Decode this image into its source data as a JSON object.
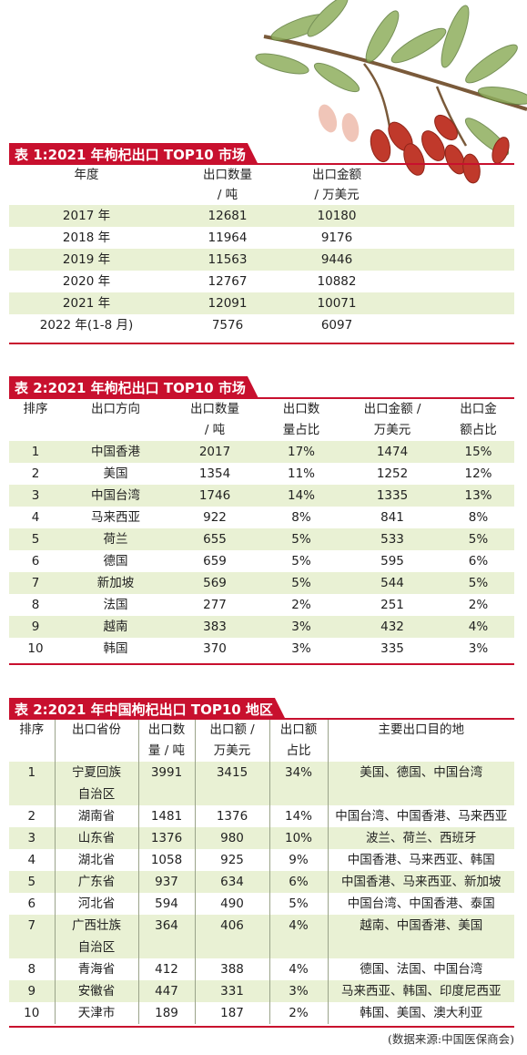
{
  "table1": {
    "title": "表 1:2021 年枸杞出口 TOP10 市场",
    "headers": [
      "年度",
      "出口数量\n/ 吨",
      "出口金额\n/ 万美元"
    ],
    "rows": [
      [
        "2017 年",
        "12681",
        "10180"
      ],
      [
        "2018 年",
        "11964",
        "9176"
      ],
      [
        "2019 年",
        "11563",
        "9446"
      ],
      [
        "2020 年",
        "12767",
        "10882"
      ],
      [
        "2021 年",
        "12091",
        "10071"
      ],
      [
        "2022 年(1-8 月)",
        "7576",
        "6097"
      ]
    ]
  },
  "table2": {
    "title": "表 2:2021 年枸杞出口 TOP10 市场",
    "headers": [
      "排序",
      "出口方向",
      "出口数量\n/ 吨",
      "出口数\n量占比",
      "出口金额 /\n万美元",
      "出口金\n额占比"
    ],
    "rows": [
      [
        "1",
        "中国香港",
        "2017",
        "17%",
        "1474",
        "15%"
      ],
      [
        "2",
        "美国",
        "1354",
        "11%",
        "1252",
        "12%"
      ],
      [
        "3",
        "中国台湾",
        "1746",
        "14%",
        "1335",
        "13%"
      ],
      [
        "4",
        "马来西亚",
        "922",
        "8%",
        "841",
        "8%"
      ],
      [
        "5",
        "荷兰",
        "655",
        "5%",
        "533",
        "5%"
      ],
      [
        "6",
        "德国",
        "659",
        "5%",
        "595",
        "6%"
      ],
      [
        "7",
        "新加坡",
        "569",
        "5%",
        "544",
        "5%"
      ],
      [
        "8",
        "法国",
        "277",
        "2%",
        "251",
        "2%"
      ],
      [
        "9",
        "越南",
        "383",
        "3%",
        "432",
        "4%"
      ],
      [
        "10",
        "韩国",
        "370",
        "3%",
        "335",
        "3%"
      ]
    ]
  },
  "table3": {
    "title": "表 2:2021 年中国枸杞出口 TOP10 地区",
    "headers": [
      "排序",
      "出口省份",
      "出口数\n量 / 吨",
      "出口额 /\n万美元",
      "出口额\n占比",
      "主要出口目的地"
    ],
    "rows": [
      [
        "1",
        "宁夏回族\n自治区",
        "3991",
        "3415",
        "34%",
        "美国、德国、中国台湾"
      ],
      [
        "2",
        "湖南省",
        "1481",
        "1376",
        "14%",
        "中国台湾、中国香港、马来西亚"
      ],
      [
        "3",
        "山东省",
        "1376",
        "980",
        "10%",
        "波兰、荷兰、西班牙"
      ],
      [
        "4",
        "湖北省",
        "1058",
        "925",
        "9%",
        "中国香港、马来西亚、韩国"
      ],
      [
        "5",
        "广东省",
        "937",
        "634",
        "6%",
        "中国香港、马来西亚、新加坡"
      ],
      [
        "6",
        "河北省",
        "594",
        "490",
        "5%",
        "中国台湾、中国香港、泰国"
      ],
      [
        "7",
        "广西壮族\n自治区",
        "364",
        "406",
        "4%",
        "越南、中国香港、美国"
      ],
      [
        "8",
        "青海省",
        "412",
        "388",
        "4%",
        "德国、法国、中国台湾"
      ],
      [
        "9",
        "安徽省",
        "447",
        "331",
        "3%",
        "马来西亚、韩国、印度尼西亚"
      ],
      [
        "10",
        "天津市",
        "189",
        "187",
        "2%",
        "韩国、美国、澳大利亚"
      ]
    ]
  },
  "source": "(数据来源:中国医保商会)",
  "colors": {
    "accent": "#c8102e",
    "row_tint": "#e9f1d4",
    "berry": "#c0392b",
    "leaf": "#6f8f4a"
  },
  "illustration": "goji-branch-icon"
}
